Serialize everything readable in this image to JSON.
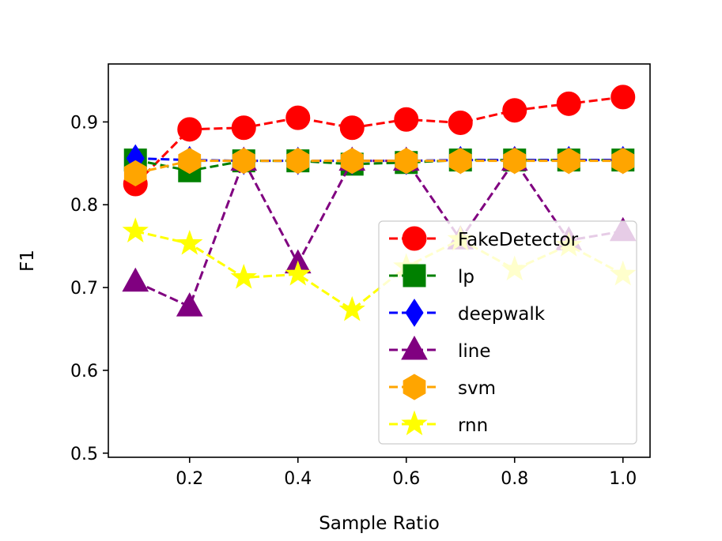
{
  "chart_data": {
    "type": "line",
    "title": "",
    "xlabel": "Sample Ratio",
    "ylabel": "F1",
    "xlim": [
      0.05,
      1.05
    ],
    "ylim": [
      0.495,
      0.97
    ],
    "xticks": [
      0.2,
      0.4,
      0.6,
      0.8,
      1.0
    ],
    "xtick_labels": [
      "0.2",
      "0.4",
      "0.6",
      "0.8",
      "1.0"
    ],
    "yticks": [
      0.5,
      0.6,
      0.7,
      0.8,
      0.9
    ],
    "ytick_labels": [
      "0.5",
      "0.6",
      "0.7",
      "0.8",
      "0.9"
    ],
    "legend_position": "center-right",
    "x": [
      0.1,
      0.2,
      0.3,
      0.4,
      0.5,
      0.6,
      0.7,
      0.8,
      0.9,
      1.0
    ],
    "series": [
      {
        "name": "FakeDetector",
        "color": "#ff0000",
        "marker": "circle",
        "values": [
          0.825,
          0.891,
          0.893,
          0.905,
          0.893,
          0.903,
          0.899,
          0.914,
          0.922,
          0.93
        ]
      },
      {
        "name": "lp",
        "color": "#008000",
        "marker": "square",
        "values": [
          0.854,
          0.841,
          0.853,
          0.853,
          0.849,
          0.851,
          0.854,
          0.854,
          0.854,
          0.854
        ]
      },
      {
        "name": "deepwalk",
        "color": "#0000ff",
        "marker": "diamond",
        "values": [
          0.856,
          0.854,
          0.853,
          0.853,
          0.853,
          0.853,
          0.854,
          0.854,
          0.854,
          0.854
        ]
      },
      {
        "name": "line",
        "color": "#800080",
        "marker": "triangle",
        "values": [
          0.707,
          0.677,
          0.853,
          0.729,
          0.853,
          0.853,
          0.758,
          0.853,
          0.757,
          0.768
        ]
      },
      {
        "name": "svm",
        "color": "#ffa500",
        "marker": "hexagon",
        "values": [
          0.838,
          0.853,
          0.853,
          0.853,
          0.853,
          0.853,
          0.853,
          0.853,
          0.853,
          0.853
        ]
      },
      {
        "name": "rnn",
        "color": "#ffff00",
        "marker": "star",
        "values": [
          0.768,
          0.753,
          0.712,
          0.716,
          0.673,
          0.725,
          0.758,
          0.722,
          0.751,
          0.716
        ]
      }
    ]
  }
}
